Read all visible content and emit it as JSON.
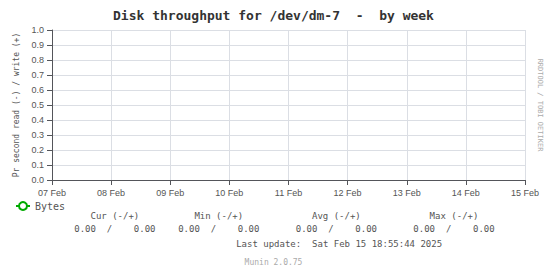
{
  "chart_data": {
    "type": "line",
    "title": "Disk throughput for /dev/dm-7  -  by week",
    "ylabel": "Pr second read (-) / write (+)",
    "categories": [
      "07 Feb",
      "08 Feb",
      "09 Feb",
      "10 Feb",
      "11 Feb",
      "12 Feb",
      "13 Feb",
      "14 Feb",
      "15 Feb"
    ],
    "series": [
      {
        "name": "Bytes",
        "color": "#00aa00",
        "values": [
          null,
          null,
          null,
          null,
          null,
          null,
          null,
          null,
          null
        ]
      }
    ],
    "ylim": [
      0.0,
      1.0
    ],
    "yticks": [
      {
        "value": 0.0,
        "label": "0.0"
      },
      0.1,
      0.2,
      0.3,
      0.4,
      0.5,
      0.6,
      0.7,
      0.8,
      0.9,
      {
        "value": 1.0,
        "label": "1.0"
      }
    ],
    "grid": true,
    "legend": "bottom left",
    "annotations": [
      "Cur (-/+)",
      "Min (-/+)",
      "Avg (-/+)",
      "Max (-/+)",
      "0.00  /    0.00",
      "0.00  /    0.00",
      "0.00  /    0.00",
      "0.00  /    0.00",
      "Last update:  Sat Feb 15 18:55:44 2025",
      "Munin 2.0.75",
      "RRDTOOL / TOBI OETIKER"
    ]
  }
}
